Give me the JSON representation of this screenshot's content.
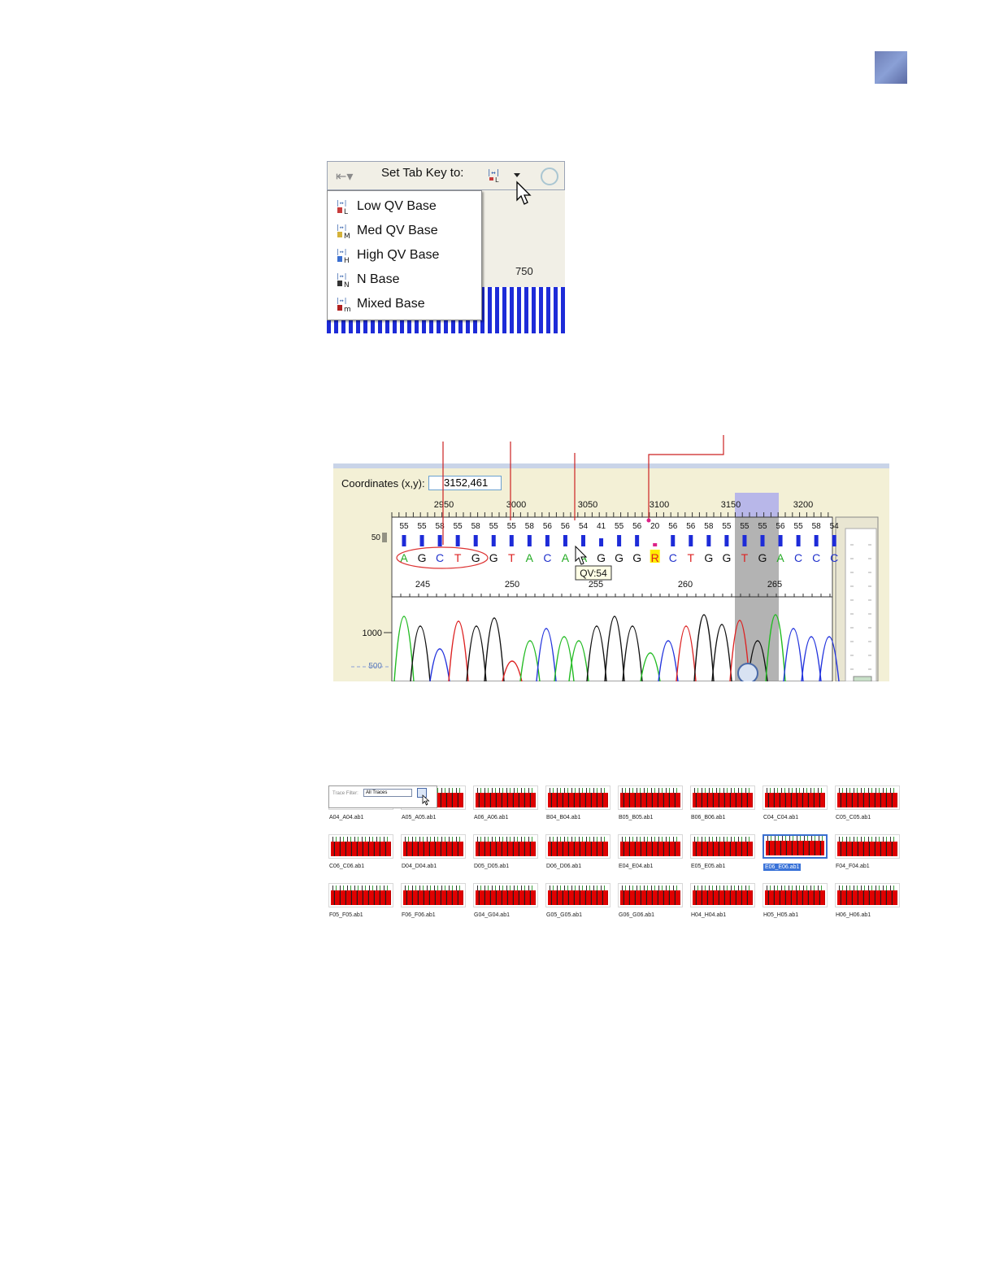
{
  "figure1": {
    "toolbar_label": "Set Tab Key to:",
    "bg_tick": "750",
    "menu_items": [
      {
        "label": "Low QV Base",
        "icon": "low-qv-icon",
        "color": "#c83c3c",
        "letter": "L"
      },
      {
        "label": "Med QV Base",
        "icon": "med-qv-icon",
        "color": "#d4b23a",
        "letter": "M"
      },
      {
        "label": "High QV Base",
        "icon": "high-qv-icon",
        "color": "#3a6fd0",
        "letter": "H"
      },
      {
        "label": "N Base",
        "icon": "n-base-icon",
        "color": "#333333",
        "letter": "N"
      },
      {
        "label": "Mixed Base",
        "icon": "mixed-base-icon",
        "color": "#b02020",
        "letter": "m"
      }
    ]
  },
  "figure2": {
    "coord_label": "Coordinates (x,y):",
    "coord_value": "3152,461",
    "scan_ticks": [
      "2950",
      "3000",
      "3050",
      "3100",
      "3150",
      "3200"
    ],
    "qv_values": [
      "55",
      "55",
      "58",
      "55",
      "58",
      "55",
      "55",
      "58",
      "56",
      "56",
      "54",
      "41",
      "55",
      "56",
      "20",
      "56",
      "56",
      "58",
      "55",
      "55",
      "55",
      "56",
      "55",
      "58",
      "54"
    ],
    "qv_axis_label": "50",
    "bases": [
      {
        "b": "A",
        "color": "#22aa22"
      },
      {
        "b": "G",
        "color": "#111111"
      },
      {
        "b": "C",
        "color": "#2233cc"
      },
      {
        "b": "T",
        "color": "#dd2222"
      },
      {
        "b": "G",
        "color": "#111111"
      },
      {
        "b": "G",
        "color": "#111111"
      },
      {
        "b": "T",
        "color": "#dd2222"
      },
      {
        "b": "A",
        "color": "#22aa22"
      },
      {
        "b": "C",
        "color": "#2233cc"
      },
      {
        "b": "A",
        "color": "#22aa22"
      },
      {
        "b": "A",
        "color": "#22aa22"
      },
      {
        "b": "G",
        "color": "#111111"
      },
      {
        "b": "G",
        "color": "#111111"
      },
      {
        "b": "G",
        "color": "#111111"
      },
      {
        "b": "R",
        "color": "#dd2222"
      },
      {
        "b": "C",
        "color": "#2233cc"
      },
      {
        "b": "T",
        "color": "#dd2222"
      },
      {
        "b": "G",
        "color": "#111111"
      },
      {
        "b": "G",
        "color": "#111111"
      },
      {
        "b": "T",
        "color": "#dd2222"
      },
      {
        "b": "G",
        "color": "#111111"
      },
      {
        "b": "A",
        "color": "#22aa22"
      },
      {
        "b": "C",
        "color": "#2233cc"
      },
      {
        "b": "C",
        "color": "#2233cc"
      },
      {
        "b": "C",
        "color": "#2233cc"
      }
    ],
    "base_ticks": [
      "245",
      "250",
      "255",
      "260",
      "265"
    ],
    "tooltip": "QV:54",
    "intensity_labels": [
      "1000",
      "500"
    ]
  },
  "figure3": {
    "filter_label": "Trace Filter:",
    "filter_value": "All Traces",
    "thumbnails": [
      "A04_A04.ab1",
      "A05_A05.ab1",
      "A06_A06.ab1",
      "B04_B04.ab1",
      "B05_B05.ab1",
      "B06_B06.ab1",
      "C04_C04.ab1",
      "C05_C05.ab1",
      "C06_C06.ab1",
      "D04_D04.ab1",
      "D05_D05.ab1",
      "D06_D06.ab1",
      "E04_E04.ab1",
      "E05_E05.ab1",
      "E06_E06.ab1",
      "F04_F04.ab1",
      "F05_F05.ab1",
      "F06_F06.ab1",
      "G04_G04.ab1",
      "G05_G05.ab1",
      "G06_G06.ab1",
      "H04_H04.ab1",
      "H05_H05.ab1",
      "H06_H06.ab1"
    ],
    "selected_index": 14
  }
}
